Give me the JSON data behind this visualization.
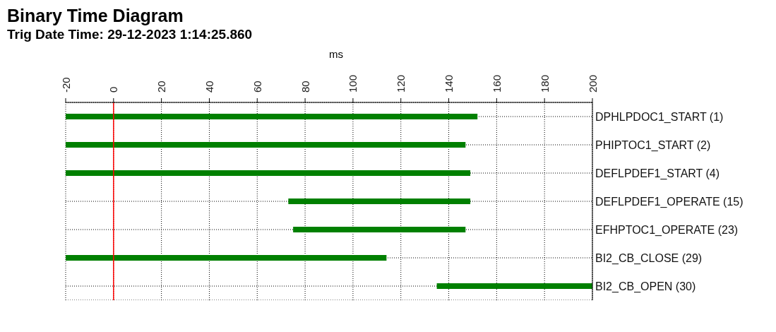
{
  "chart_data": {
    "type": "bar",
    "orientation": "horizontal",
    "title": "Binary Time Diagram",
    "subtitle": "Trig Date Time: 29-12-2023 1:14:25.860",
    "xlabel": "ms",
    "categories": [
      "DPHLPDOC1_START (1)",
      "PHIPTOC1_START (2)",
      "DEFLPDEF1_START (4)",
      "DEFLPDEF1_OPERATE (15)",
      "EFHPTOC1_OPERATE (23)",
      "BI2_CB_CLOSE (29)",
      "BI2_CB_OPEN (30)"
    ],
    "base": [
      -20,
      -20,
      -20,
      73,
      75,
      -20,
      135
    ],
    "values": [
      172,
      167,
      169,
      76,
      72,
      134,
      65
    ],
    "color": "#008000",
    "xlim": [
      -20,
      200
    ],
    "xticks": [
      -20,
      0,
      20,
      40,
      60,
      80,
      100,
      120,
      140,
      160,
      180,
      200
    ],
    "grid": true,
    "ref_lines": [
      {
        "axis": "x",
        "value": 0,
        "color": "#ff0000"
      }
    ]
  }
}
